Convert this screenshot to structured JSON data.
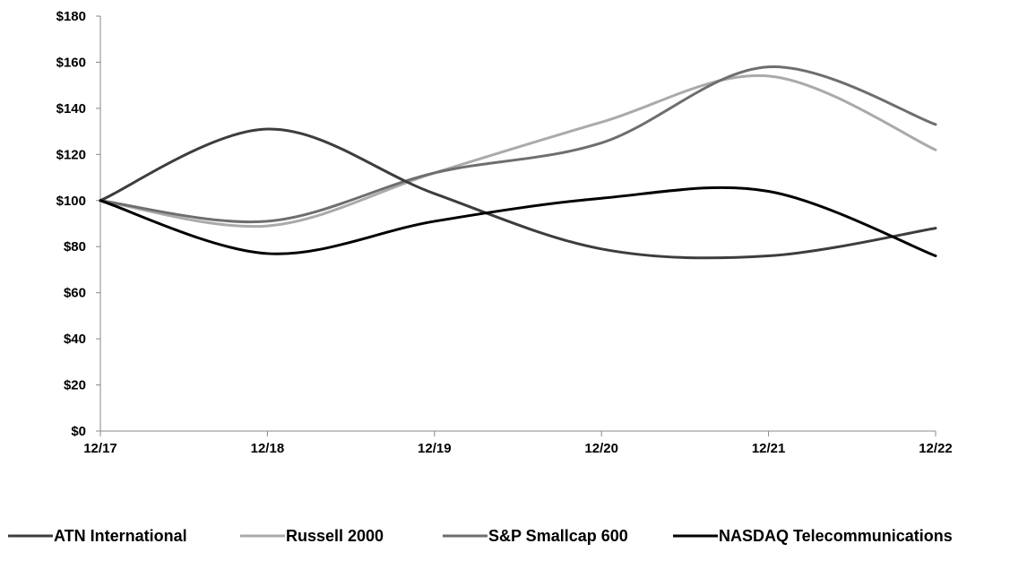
{
  "chart_data": {
    "type": "line",
    "x": [
      "12/17",
      "12/18",
      "12/19",
      "12/20",
      "12/21",
      "12/22"
    ],
    "y_ticks": [
      "$0",
      "$20",
      "$40",
      "$60",
      "$80",
      "$100",
      "$120",
      "$140",
      "$160",
      "$180"
    ],
    "ylim": [
      0,
      180
    ],
    "grid": false,
    "legend_position": "bottom",
    "series": [
      {
        "name": "ATN International",
        "color": "#3d3d3d",
        "values": [
          100,
          131,
          103,
          79,
          76,
          88
        ]
      },
      {
        "name": "Russell 2000",
        "color": "#aaaaaa",
        "values": [
          100,
          89,
          112,
          134,
          154,
          122
        ]
      },
      {
        "name": "S&P Smallcap 600",
        "color": "#6e6e6e",
        "values": [
          100,
          91,
          112,
          125,
          158,
          133
        ]
      },
      {
        "name": "NASDAQ Telecommunications",
        "color": "#000000",
        "values": [
          100,
          77,
          91,
          101,
          104,
          76
        ]
      }
    ]
  }
}
